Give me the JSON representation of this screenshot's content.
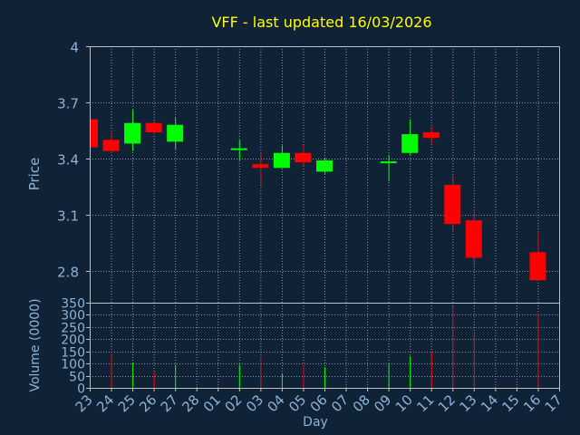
{
  "chart_data": {
    "type": "candlestick",
    "title": "VFF - last updated 16/03/2026",
    "xlabel": "Day",
    "price_panel": {
      "ylabel": "Price",
      "yticks": [
        "4",
        "3.7",
        "3.4",
        "3.1",
        "2.8"
      ],
      "ylim": [
        2.63,
        4.0
      ]
    },
    "volume_panel": {
      "ylabel": "Volume (0000)",
      "yticks": [
        "350",
        "300",
        "250",
        "200",
        "150",
        "100",
        "50",
        "0"
      ],
      "ylim": [
        0,
        350
      ]
    },
    "x_labels": [
      "23",
      "24",
      "25",
      "26",
      "27",
      "28",
      "01",
      "02",
      "03",
      "04",
      "05",
      "06",
      "07",
      "08",
      "09",
      "10",
      "11",
      "12",
      "13",
      "14",
      "15",
      "16",
      "17"
    ],
    "candles": [
      {
        "day": "23",
        "open": 3.61,
        "close": 3.46,
        "high": 3.61,
        "low": 3.46,
        "volume": 0
      },
      {
        "day": "24",
        "open": 3.5,
        "close": 3.44,
        "high": 3.54,
        "low": 3.43,
        "volume": 140
      },
      {
        "day": "25",
        "open": 3.48,
        "close": 3.59,
        "high": 3.66,
        "low": 3.44,
        "volume": 105
      },
      {
        "day": "26",
        "open": 3.59,
        "close": 3.54,
        "high": 3.6,
        "low": 3.53,
        "volume": 65
      },
      {
        "day": "27",
        "open": 3.49,
        "close": 3.58,
        "high": 3.62,
        "low": 3.45,
        "volume": 95
      },
      {
        "day": "02",
        "open": 3.45,
        "close": 3.45,
        "high": 3.5,
        "low": 3.39,
        "volume": 95
      },
      {
        "day": "03",
        "open": 3.37,
        "close": 3.35,
        "high": 3.43,
        "low": 3.26,
        "volume": 120
      },
      {
        "day": "04",
        "open": 3.35,
        "close": 3.43,
        "high": 3.47,
        "low": 3.35,
        "volume": 60
      },
      {
        "day": "05",
        "open": 3.43,
        "close": 3.38,
        "high": 3.47,
        "low": 3.36,
        "volume": 95
      },
      {
        "day": "06",
        "open": 3.33,
        "close": 3.39,
        "high": 3.4,
        "low": 3.32,
        "volume": 85
      },
      {
        "day": "09",
        "open": 3.38,
        "close": 3.38,
        "high": 3.42,
        "low": 3.28,
        "volume": 100
      },
      {
        "day": "10",
        "open": 3.43,
        "close": 3.53,
        "high": 3.61,
        "low": 3.42,
        "volume": 130
      },
      {
        "day": "11",
        "open": 3.54,
        "close": 3.51,
        "high": 3.57,
        "low": 3.48,
        "volume": 150
      },
      {
        "day": "12",
        "open": 3.26,
        "close": 3.05,
        "high": 3.31,
        "low": 3.01,
        "volume": 335
      },
      {
        "day": "13",
        "open": 3.07,
        "close": 2.87,
        "high": 3.13,
        "low": 2.83,
        "volume": 230
      },
      {
        "day": "16",
        "open": 2.9,
        "close": 2.75,
        "high": 3.01,
        "low": 2.75,
        "volume": 305
      }
    ],
    "colors": {
      "background": "#0f2236",
      "plot_background": "#0f2236",
      "grid": "#8b97a3",
      "axis_text": "#8fb3d8",
      "title": "#ffff00",
      "up": "#00ff00",
      "down": "#ff0000",
      "frame": "#c0c0c0"
    },
    "grid": true
  }
}
